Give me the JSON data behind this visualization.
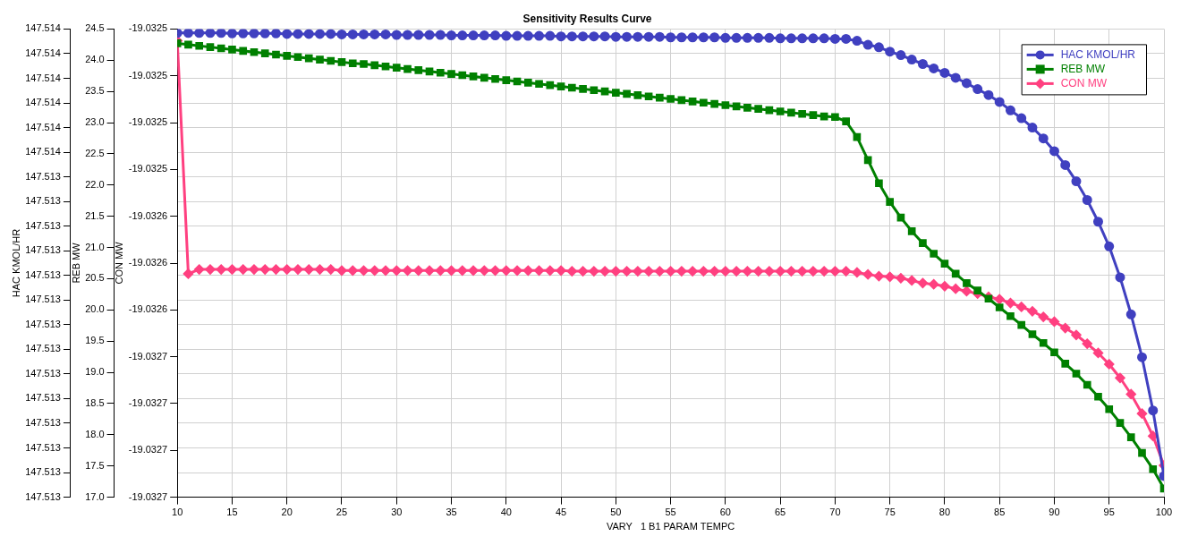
{
  "chart_data": {
    "type": "line",
    "title": "Sensitivity Results Curve",
    "xlabel": "VARY   1 B1 PARAM TEMPC",
    "ylabel": "HAC KMOL/HR",
    "y2label": "REB MW",
    "y3label": "CON MW",
    "x": [
      10,
      11,
      12,
      13,
      14,
      15,
      16,
      17,
      18,
      19,
      20,
      21,
      22,
      23,
      24,
      25,
      26,
      27,
      28,
      29,
      30,
      31,
      32,
      33,
      34,
      35,
      36,
      37,
      38,
      39,
      40,
      41,
      42,
      43,
      44,
      45,
      46,
      47,
      48,
      49,
      50,
      51,
      52,
      53,
      54,
      55,
      56,
      57,
      58,
      59,
      60,
      61,
      62,
      63,
      64,
      65,
      66,
      67,
      68,
      69,
      70,
      71,
      72,
      73,
      74,
      75,
      76,
      77,
      78,
      79,
      80,
      81,
      82,
      83,
      84,
      85,
      86,
      87,
      88,
      89,
      90,
      91,
      92,
      93,
      94,
      95,
      96,
      97,
      98,
      99,
      100
    ],
    "xlim": [
      10,
      100
    ],
    "xticks": [
      10,
      15,
      20,
      25,
      30,
      35,
      40,
      45,
      50,
      55,
      60,
      65,
      70,
      75,
      80,
      85,
      90,
      95,
      100
    ],
    "ylim": [
      147.51282,
      147.51377
    ],
    "yticks": [
      {
        "value": 147.51377,
        "label": "147.514"
      },
      {
        "value": 147.51372,
        "label": "147.514"
      },
      {
        "value": 147.51367,
        "label": "147.514"
      },
      {
        "value": 147.51362,
        "label": "147.514"
      },
      {
        "value": 147.51357,
        "label": "147.514"
      },
      {
        "value": 147.51352,
        "label": "147.514"
      },
      {
        "value": 147.51347,
        "label": "147.513"
      },
      {
        "value": 147.51342,
        "label": "147.513"
      },
      {
        "value": 147.51337,
        "label": "147.513"
      },
      {
        "value": 147.51332,
        "label": "147.513"
      },
      {
        "value": 147.51327,
        "label": "147.513"
      },
      {
        "value": 147.51322,
        "label": "147.513"
      },
      {
        "value": 147.51317,
        "label": "147.513"
      },
      {
        "value": 147.51312,
        "label": "147.513"
      },
      {
        "value": 147.51307,
        "label": "147.513"
      },
      {
        "value": 147.51302,
        "label": "147.513"
      },
      {
        "value": 147.51297,
        "label": "147.513"
      },
      {
        "value": 147.51292,
        "label": "147.513"
      },
      {
        "value": 147.51287,
        "label": "147.513"
      },
      {
        "value": 147.51282,
        "label": "147.513"
      }
    ],
    "y2lim": [
      17,
      24.5
    ],
    "y2ticks": [
      {
        "value": 24.5,
        "label": "24.5"
      },
      {
        "value": 24,
        "label": "24.0"
      },
      {
        "value": 23.5,
        "label": "23.5"
      },
      {
        "value": 23,
        "label": "23.0"
      },
      {
        "value": 22.5,
        "label": "22.5"
      },
      {
        "value": 22,
        "label": "22.0"
      },
      {
        "value": 21.5,
        "label": "21.5"
      },
      {
        "value": 21,
        "label": "21.0"
      },
      {
        "value": 20.5,
        "label": "20.5"
      },
      {
        "value": 20,
        "label": "20.0"
      },
      {
        "value": 19.5,
        "label": "19.5"
      },
      {
        "value": 19,
        "label": "19.0"
      },
      {
        "value": 18.5,
        "label": "18.5"
      },
      {
        "value": 18,
        "label": "18.0"
      },
      {
        "value": 17.5,
        "label": "17.5"
      },
      {
        "value": 17,
        "label": "17.0"
      }
    ],
    "y3lim": [
      -19.032745,
      -19.032455
    ],
    "y3ticks": [
      {
        "value": -19.032455,
        "label": "-19.0325"
      },
      {
        "value": -19.032484,
        "label": "-19.0325"
      },
      {
        "value": -19.032513,
        "label": "-19.0325"
      },
      {
        "value": -19.032542,
        "label": "-19.0325"
      },
      {
        "value": -19.032571,
        "label": "-19.0326"
      },
      {
        "value": -19.0326,
        "label": "-19.0326"
      },
      {
        "value": -19.032629,
        "label": "-19.0326"
      },
      {
        "value": -19.032658,
        "label": "-19.0327"
      },
      {
        "value": -19.032687,
        "label": "-19.0327"
      },
      {
        "value": -19.032716,
        "label": "-19.0327"
      },
      {
        "value": -19.032745,
        "label": "-19.0327"
      }
    ],
    "grid": true,
    "legend": "top right",
    "series": [
      {
        "name": "HAC KMOL/HR",
        "color": "#4040c0",
        "marker": "circle",
        "values": [
          147.513762,
          147.513762,
          147.513762,
          147.513762,
          147.513762,
          147.513761,
          147.513761,
          147.513761,
          147.513761,
          147.513761,
          147.51376,
          147.51376,
          147.51376,
          147.51376,
          147.51376,
          147.513759,
          147.513759,
          147.513759,
          147.513759,
          147.513759,
          147.513758,
          147.513758,
          147.513758,
          147.513758,
          147.513758,
          147.513757,
          147.513757,
          147.513757,
          147.513757,
          147.513757,
          147.513756,
          147.513756,
          147.513756,
          147.513756,
          147.513756,
          147.513755,
          147.513755,
          147.513755,
          147.513755,
          147.513755,
          147.513754,
          147.513754,
          147.513754,
          147.513754,
          147.513754,
          147.513753,
          147.513753,
          147.513753,
          147.513753,
          147.513753,
          147.513752,
          147.513752,
          147.513752,
          147.513752,
          147.513752,
          147.513751,
          147.513751,
          147.513751,
          147.513751,
          147.513751,
          147.51375,
          147.51375,
          147.513746,
          147.513738,
          147.513733,
          147.513724,
          147.513717,
          147.513708,
          147.513699,
          147.51369,
          147.513681,
          147.513671,
          147.51366,
          147.513648,
          147.513636,
          147.513622,
          147.513605,
          147.513589,
          147.51357,
          147.513548,
          147.513522,
          147.513494,
          147.513461,
          147.513423,
          147.513379,
          147.513329,
          147.513266,
          147.513191,
          147.513104,
          147.512996,
          147.512863
        ]
      },
      {
        "name": "REB MW",
        "color": "#008000",
        "marker": "square",
        "axis": "y2",
        "values": [
          24.27,
          24.25,
          24.23,
          24.21,
          24.19,
          24.17,
          24.15,
          24.13,
          24.11,
          24.09,
          24.07,
          24.05,
          24.03,
          24.01,
          23.99,
          23.97,
          23.95,
          23.94,
          23.92,
          23.9,
          23.88,
          23.86,
          23.84,
          23.82,
          23.8,
          23.78,
          23.76,
          23.74,
          23.72,
          23.7,
          23.68,
          23.66,
          23.64,
          23.62,
          23.6,
          23.58,
          23.56,
          23.54,
          23.52,
          23.5,
          23.48,
          23.46,
          23.44,
          23.42,
          23.4,
          23.38,
          23.36,
          23.34,
          23.32,
          23.3,
          23.28,
          23.26,
          23.24,
          23.22,
          23.2,
          23.18,
          23.16,
          23.14,
          23.12,
          23.1,
          23.09,
          23.02,
          22.77,
          22.4,
          22.03,
          21.73,
          21.48,
          21.26,
          21.07,
          20.9,
          20.74,
          20.58,
          20.43,
          20.31,
          20.18,
          20.04,
          19.9,
          19.76,
          19.61,
          19.47,
          19.32,
          19.14,
          18.98,
          18.8,
          18.61,
          18.41,
          18.19,
          17.96,
          17.71,
          17.45,
          17.14
        ]
      },
      {
        "name": "CON MW",
        "color": "#ff4080",
        "marker": "diamond",
        "axis": "y3",
        "values": [
          -19.0324623,
          -19.0326066,
          -19.0326039,
          -19.0326039,
          -19.0326039,
          -19.0326039,
          -19.0326039,
          -19.0326039,
          -19.0326039,
          -19.0326039,
          -19.0326039,
          -19.0326039,
          -19.0326039,
          -19.0326039,
          -19.0326039,
          -19.0326046,
          -19.0326046,
          -19.0326046,
          -19.0326046,
          -19.0326046,
          -19.0326046,
          -19.0326046,
          -19.0326046,
          -19.0326046,
          -19.0326046,
          -19.0326046,
          -19.0326046,
          -19.0326046,
          -19.0326046,
          -19.0326046,
          -19.0326046,
          -19.0326046,
          -19.0326046,
          -19.0326046,
          -19.0326046,
          -19.0326046,
          -19.032605,
          -19.032605,
          -19.032605,
          -19.032605,
          -19.032605,
          -19.032605,
          -19.032605,
          -19.032605,
          -19.032605,
          -19.032605,
          -19.032605,
          -19.032605,
          -19.032605,
          -19.032605,
          -19.032605,
          -19.032605,
          -19.032605,
          -19.032605,
          -19.032605,
          -19.032605,
          -19.032605,
          -19.032605,
          -19.032605,
          -19.032605,
          -19.032605,
          -19.032605,
          -19.0326058,
          -19.032607,
          -19.0326081,
          -19.0326085,
          -19.0326093,
          -19.0326108,
          -19.0326124,
          -19.0326131,
          -19.0326143,
          -19.0326159,
          -19.0326174,
          -19.0326189,
          -19.0326209,
          -19.0326224,
          -19.0326247,
          -19.0326271,
          -19.0326298,
          -19.0326333,
          -19.0326363,
          -19.0326402,
          -19.0326445,
          -19.0326499,
          -19.0326557,
          -19.0326626,
          -19.0326711,
          -19.0326812,
          -19.0326932,
          -19.0327071,
          -19.0327253
        ]
      }
    ]
  }
}
